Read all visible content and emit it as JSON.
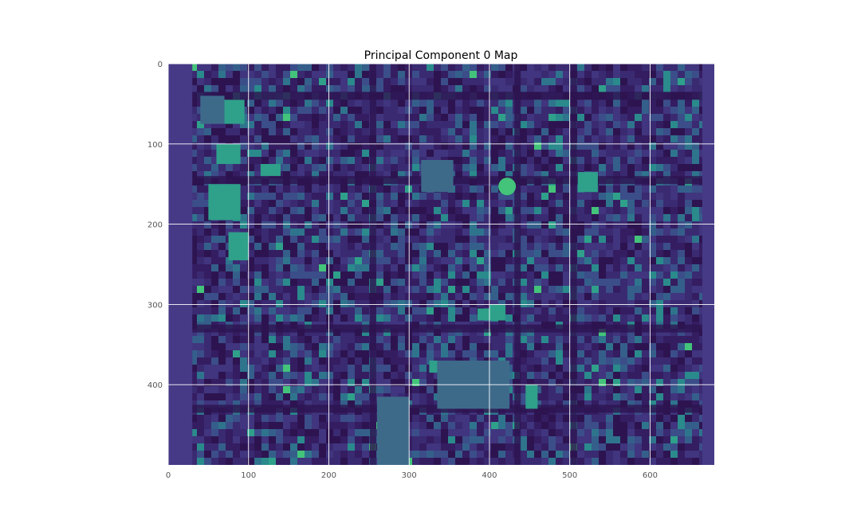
{
  "chart_data": {
    "type": "heatmap",
    "title": "Principal Component 0 Map",
    "xlabel": "",
    "ylabel": "",
    "xlim": [
      0,
      680
    ],
    "ylim": [
      500,
      0
    ],
    "x_ticks": [
      0,
      100,
      200,
      300,
      400,
      500,
      600
    ],
    "y_ticks": [
      0,
      100,
      200,
      300,
      400
    ],
    "grid": true,
    "grid_color": "#ffffff",
    "colormap": "viridis",
    "colors": {
      "background_dark": "#3a2a72",
      "road_dark": "#2d1450",
      "building_mid": "#3e6a8a",
      "building_teal": "#2fa08a",
      "building_bright": "#43c47a",
      "edge_strip": "#463a86"
    },
    "content": "aerial urban scene rendered as viridis-colored principal component intensity"
  }
}
